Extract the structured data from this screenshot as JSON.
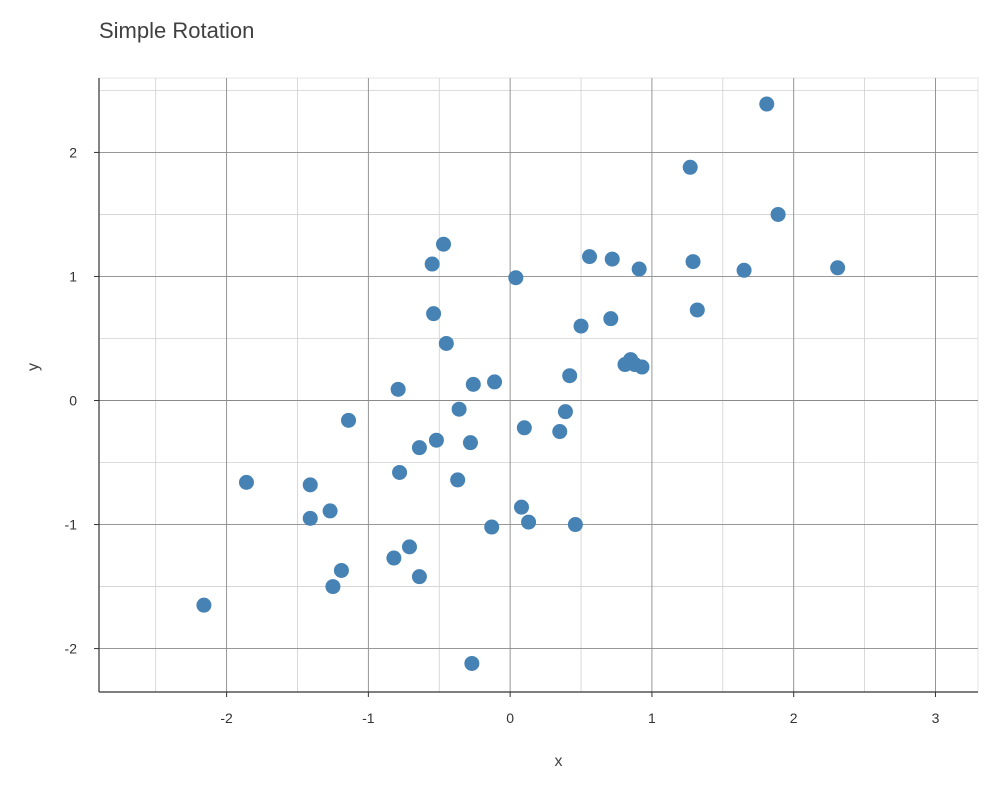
{
  "chart_data": {
    "type": "scatter",
    "title": "Simple Rotation",
    "xlabel": "x",
    "ylabel": "y",
    "xlim": [
      -2.9,
      3.3
    ],
    "ylim": [
      -2.35,
      2.6
    ],
    "xticks": [
      -2,
      -1,
      0,
      1,
      2,
      3
    ],
    "yticks": [
      -2,
      -1,
      0,
      1,
      2
    ],
    "xtick_labels": [
      "-2",
      "-1",
      "0",
      "1",
      "2",
      "3"
    ],
    "ytick_labels": [
      "-2",
      "-1",
      "0",
      "1",
      "2"
    ],
    "grid": true,
    "point_color": "#4682b4",
    "points": [
      {
        "x": 1.81,
        "y": 2.39
      },
      {
        "x": 1.27,
        "y": 1.88
      },
      {
        "x": 1.89,
        "y": 1.5
      },
      {
        "x": -0.47,
        "y": 1.26
      },
      {
        "x": -0.55,
        "y": 1.1
      },
      {
        "x": 0.56,
        "y": 1.16
      },
      {
        "x": 0.72,
        "y": 1.14
      },
      {
        "x": 0.91,
        "y": 1.06
      },
      {
        "x": 1.29,
        "y": 1.12
      },
      {
        "x": 1.65,
        "y": 1.05
      },
      {
        "x": 2.31,
        "y": 1.07
      },
      {
        "x": 0.04,
        "y": 0.99
      },
      {
        "x": -0.54,
        "y": 0.7
      },
      {
        "x": 1.32,
        "y": 0.73
      },
      {
        "x": 0.5,
        "y": 0.6
      },
      {
        "x": 0.71,
        "y": 0.66
      },
      {
        "x": -0.45,
        "y": 0.46
      },
      {
        "x": 0.85,
        "y": 0.33
      },
      {
        "x": 0.81,
        "y": 0.29
      },
      {
        "x": 0.88,
        "y": 0.29
      },
      {
        "x": 0.93,
        "y": 0.27
      },
      {
        "x": 0.42,
        "y": 0.2
      },
      {
        "x": -0.11,
        "y": 0.15
      },
      {
        "x": -0.26,
        "y": 0.13
      },
      {
        "x": -0.79,
        "y": 0.09
      },
      {
        "x": -0.36,
        "y": -0.07
      },
      {
        "x": 0.39,
        "y": -0.09
      },
      {
        "x": -1.14,
        "y": -0.16
      },
      {
        "x": 0.1,
        "y": -0.22
      },
      {
        "x": 0.35,
        "y": -0.25
      },
      {
        "x": -0.52,
        "y": -0.32
      },
      {
        "x": -0.28,
        "y": -0.34
      },
      {
        "x": -0.64,
        "y": -0.38
      },
      {
        "x": -0.78,
        "y": -0.58
      },
      {
        "x": -0.37,
        "y": -0.64
      },
      {
        "x": -1.86,
        "y": -0.66
      },
      {
        "x": -1.41,
        "y": -0.68
      },
      {
        "x": 0.08,
        "y": -0.86
      },
      {
        "x": -1.27,
        "y": -0.89
      },
      {
        "x": -1.41,
        "y": -0.95
      },
      {
        "x": 0.13,
        "y": -0.98
      },
      {
        "x": 0.46,
        "y": -1.0
      },
      {
        "x": -0.13,
        "y": -1.02
      },
      {
        "x": -0.71,
        "y": -1.18
      },
      {
        "x": -0.82,
        "y": -1.27
      },
      {
        "x": -1.19,
        "y": -1.37
      },
      {
        "x": -0.64,
        "y": -1.42
      },
      {
        "x": -1.25,
        "y": -1.5
      },
      {
        "x": -2.16,
        "y": -1.65
      },
      {
        "x": -0.27,
        "y": -2.12
      }
    ]
  }
}
